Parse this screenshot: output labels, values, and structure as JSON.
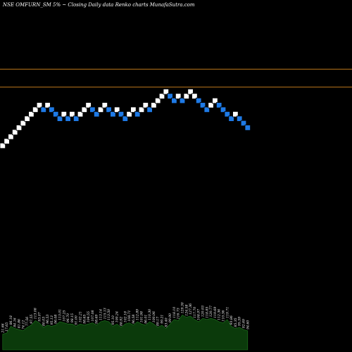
{
  "title": "NSE OMFURN_SM 5% ~  Closing Daily data  Renko  charts MunafaSutra.com",
  "chart_data": {
    "type": "renko",
    "title": "NSE OMFURN_SM 5% ~  Closing Daily data  Renko  charts MunafaSutra.com",
    "xlabel": "",
    "ylabel": "",
    "colors": {
      "up": "#ffffff",
      "down": "#1e7ae6",
      "reference_line": "#c07a1c",
      "volume_fill": "#0b3a0b",
      "volume_edge": "#1f7a1f",
      "background": "#000000"
    },
    "reference_levels": [
      20.5,
      16.5
    ],
    "bricks": [
      {
        "dir": "up",
        "level": 0
      },
      {
        "dir": "up",
        "level": 1
      },
      {
        "dir": "up",
        "level": 2
      },
      {
        "dir": "up",
        "level": 3
      },
      {
        "dir": "up",
        "level": 4
      },
      {
        "dir": "up",
        "level": 5
      },
      {
        "dir": "up",
        "level": 6
      },
      {
        "dir": "up",
        "level": 7
      },
      {
        "dir": "up",
        "level": 8
      },
      {
        "dir": "up",
        "level": 9
      },
      {
        "dir": "down",
        "level": 8
      },
      {
        "dir": "up",
        "level": 9
      },
      {
        "dir": "down",
        "level": 8
      },
      {
        "dir": "down",
        "level": 7
      },
      {
        "dir": "down",
        "level": 6
      },
      {
        "dir": "up",
        "level": 7
      },
      {
        "dir": "down",
        "level": 6
      },
      {
        "dir": "up",
        "level": 7
      },
      {
        "dir": "down",
        "level": 6
      },
      {
        "dir": "up",
        "level": 7
      },
      {
        "dir": "up",
        "level": 8
      },
      {
        "dir": "up",
        "level": 9
      },
      {
        "dir": "down",
        "level": 8
      },
      {
        "dir": "down",
        "level": 7
      },
      {
        "dir": "up",
        "level": 8
      },
      {
        "dir": "up",
        "level": 9
      },
      {
        "dir": "down",
        "level": 8
      },
      {
        "dir": "down",
        "level": 7
      },
      {
        "dir": "up",
        "level": 8
      },
      {
        "dir": "down",
        "level": 7
      },
      {
        "dir": "down",
        "level": 6
      },
      {
        "dir": "up",
        "level": 7
      },
      {
        "dir": "up",
        "level": 8
      },
      {
        "dir": "down",
        "level": 7
      },
      {
        "dir": "up",
        "level": 8
      },
      {
        "dir": "up",
        "level": 9
      },
      {
        "dir": "down",
        "level": 8
      },
      {
        "dir": "up",
        "level": 9
      },
      {
        "dir": "up",
        "level": 10
      },
      {
        "dir": "up",
        "level": 11
      },
      {
        "dir": "up",
        "level": 12
      },
      {
        "dir": "down",
        "level": 11
      },
      {
        "dir": "down",
        "level": 10
      },
      {
        "dir": "up",
        "level": 11
      },
      {
        "dir": "down",
        "level": 10
      },
      {
        "dir": "up",
        "level": 11
      },
      {
        "dir": "up",
        "level": 12
      },
      {
        "dir": "up",
        "level": 11
      },
      {
        "dir": "down",
        "level": 10
      },
      {
        "dir": "down",
        "level": 9
      },
      {
        "dir": "down",
        "level": 8
      },
      {
        "dir": "up",
        "level": 9
      },
      {
        "dir": "up",
        "level": 10
      },
      {
        "dir": "down",
        "level": 9
      },
      {
        "dir": "down",
        "level": 8
      },
      {
        "dir": "down",
        "level": 7
      },
      {
        "dir": "down",
        "level": 6
      },
      {
        "dir": "up",
        "level": 7
      },
      {
        "dir": "down",
        "level": 6
      },
      {
        "dir": "down",
        "level": 5
      },
      {
        "dir": "down",
        "level": 4
      }
    ],
    "volume_labels": [
      "21.66",
      "17.65",
      "86.18",
      "84.16",
      "81.86",
      "74.12",
      "77.56",
      "97.55",
      "113.08",
      "93.07",
      "80.03",
      "96.53",
      "95.13",
      "96.08",
      "113.01",
      "107.25",
      "96.70",
      "98.15",
      "91.00",
      "102.21",
      "98.65",
      "104.55",
      "107.08",
      "98.69",
      "113.14",
      "115.13",
      "113.50",
      "95.10",
      "100.24",
      "88.92",
      "102.18",
      "108.71",
      "96.58",
      "112.89",
      "101.98",
      "96.01",
      "110.30",
      "100.06",
      "89.17",
      "99.21",
      "83.40",
      "99.90",
      "118.10",
      "116.73",
      "129.30",
      "124.58",
      "127.36",
      "117.70",
      "108.97",
      "120.93",
      "118.85",
      "120.77",
      "119.69",
      "112.36",
      "110.36",
      "119.71",
      "93.86",
      "85.35",
      "95.59",
      "92.69",
      "94.60"
    ],
    "volume_values": [
      28,
      30,
      42,
      38,
      36,
      34,
      40,
      44,
      52,
      48,
      40,
      44,
      42,
      44,
      50,
      48,
      46,
      46,
      42,
      46,
      44,
      46,
      48,
      44,
      50,
      52,
      50,
      42,
      46,
      40,
      46,
      48,
      44,
      50,
      46,
      44,
      50,
      46,
      40,
      44,
      38,
      46,
      54,
      52,
      62,
      58,
      60,
      54,
      50,
      56,
      54,
      56,
      54,
      50,
      48,
      54,
      42,
      38,
      40,
      36,
      34
    ]
  }
}
